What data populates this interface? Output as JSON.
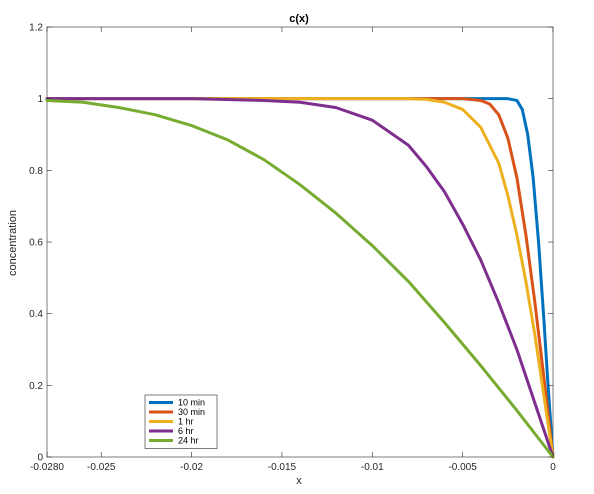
{
  "chart_data": {
    "type": "line",
    "title": "c(x)",
    "xlabel": "x",
    "ylabel": "concentration",
    "xlim": [
      -0.028,
      0
    ],
    "ylim": [
      0,
      1.2
    ],
    "xticks": [
      -0.028,
      -0.025,
      -0.02,
      -0.015,
      -0.01,
      -0.005,
      0
    ],
    "xtick_labels": [
      "-0.0280",
      "-0.025",
      "-0.02",
      "-0.015",
      "-0.01",
      "-0.005",
      "0"
    ],
    "yticks": [
      0,
      0.2,
      0.4,
      0.6,
      0.8,
      1,
      1.2
    ],
    "ytick_labels": [
      "0",
      "0.2",
      "0.4",
      "0.6",
      "0.8",
      "1",
      "1.2"
    ],
    "grid": false,
    "legend_position": "bottom-left",
    "series": [
      {
        "name": "10 min",
        "color": "#0072BD",
        "x": [
          -0.028,
          -0.004,
          -0.003,
          -0.0025,
          -0.002,
          -0.0017,
          -0.0014,
          -0.0011,
          -0.0008,
          -0.0005,
          -0.0003,
          0
        ],
        "y": [
          1.0,
          1.0,
          1.0,
          1.0,
          0.995,
          0.97,
          0.9,
          0.78,
          0.6,
          0.38,
          0.22,
          0.0
        ]
      },
      {
        "name": "30 min",
        "color": "#D95319",
        "x": [
          -0.028,
          -0.006,
          -0.005,
          -0.004,
          -0.0035,
          -0.003,
          -0.0025,
          -0.002,
          -0.0015,
          -0.001,
          -0.0005,
          0
        ],
        "y": [
          1.0,
          1.0,
          1.0,
          0.995,
          0.985,
          0.955,
          0.89,
          0.78,
          0.62,
          0.43,
          0.22,
          0.0
        ]
      },
      {
        "name": "1 hr",
        "color": "#EDB120",
        "x": [
          -0.028,
          -0.008,
          -0.007,
          -0.006,
          -0.005,
          -0.004,
          -0.003,
          -0.0025,
          -0.002,
          -0.0015,
          -0.001,
          -0.0005,
          0
        ],
        "y": [
          1.0,
          1.0,
          0.998,
          0.99,
          0.97,
          0.92,
          0.82,
          0.73,
          0.62,
          0.49,
          0.34,
          0.17,
          0.0
        ]
      },
      {
        "name": "6 hr",
        "color": "#7E2F8E",
        "x": [
          -0.028,
          -0.02,
          -0.016,
          -0.014,
          -0.012,
          -0.01,
          -0.008,
          -0.007,
          -0.006,
          -0.005,
          -0.004,
          -0.003,
          -0.002,
          -0.001,
          0
        ],
        "y": [
          1.0,
          1.0,
          0.995,
          0.99,
          0.975,
          0.94,
          0.87,
          0.81,
          0.74,
          0.65,
          0.55,
          0.43,
          0.3,
          0.15,
          0.0
        ]
      },
      {
        "name": "24 hr",
        "color": "#77AC30",
        "x": [
          -0.028,
          -0.026,
          -0.024,
          -0.022,
          -0.02,
          -0.018,
          -0.016,
          -0.014,
          -0.012,
          -0.01,
          -0.008,
          -0.006,
          -0.004,
          -0.002,
          0
        ],
        "y": [
          0.995,
          0.99,
          0.975,
          0.955,
          0.925,
          0.885,
          0.83,
          0.76,
          0.68,
          0.59,
          0.49,
          0.375,
          0.255,
          0.13,
          0.0
        ]
      }
    ]
  }
}
